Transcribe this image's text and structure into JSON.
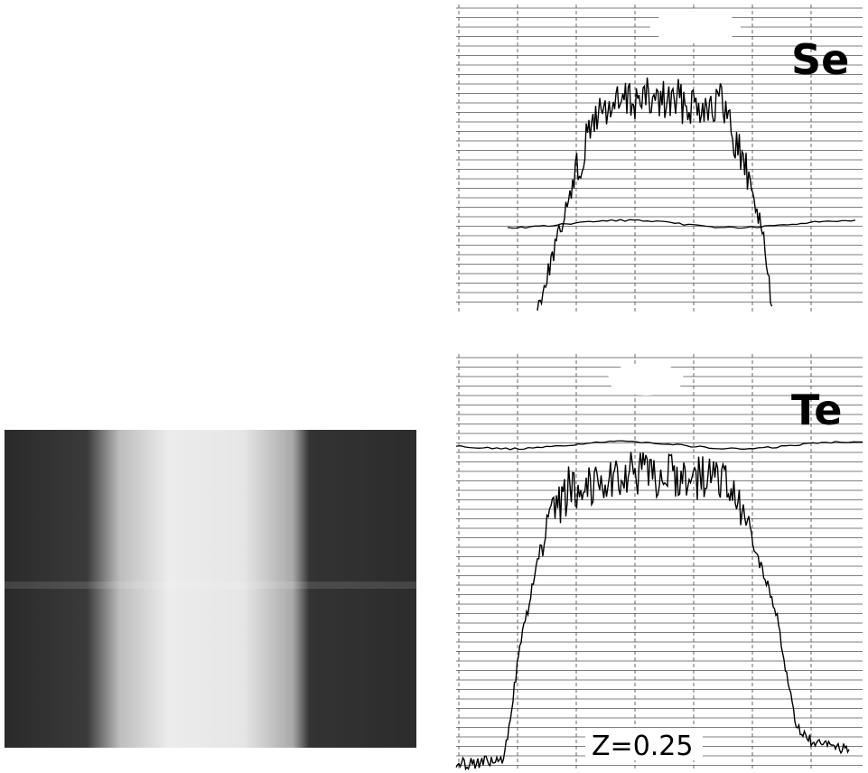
{
  "panels": [
    {
      "label": "Se"
    },
    {
      "label": "Te",
      "annotation": "Z=0.25"
    }
  ]
}
